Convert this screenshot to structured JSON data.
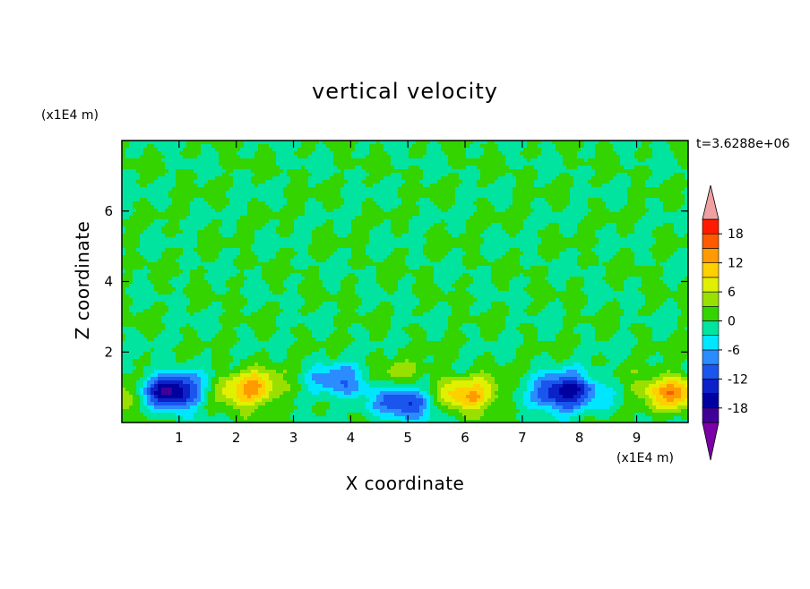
{
  "chart_data": {
    "type": "heatmap",
    "title": "vertical velocity",
    "xlabel": "X coordinate",
    "ylabel": "Z coordinate",
    "x_unit": "(x1E4 m)",
    "y_unit": "(x1E4 m)",
    "time_label": "t=3.6288e+06",
    "xlim": [
      0,
      9.9
    ],
    "ylim": [
      0,
      8
    ],
    "x_ticks": [
      1,
      2,
      3,
      4,
      5,
      6,
      7,
      8,
      9
    ],
    "y_ticks": [
      2,
      4,
      6
    ],
    "colorbar": {
      "levels": [
        -21,
        -18,
        -15,
        -12,
        -9,
        -6,
        -3,
        0,
        3,
        6,
        9,
        12,
        15,
        18,
        21
      ],
      "tick_labels": [
        "18",
        "12",
        "6",
        "0",
        "-6",
        "-12",
        "-18"
      ],
      "colors": [
        "#7b00a8",
        "#400098",
        "#0000a0",
        "#0a22c8",
        "#1a55ee",
        "#2a8cff",
        "#00e6ff",
        "#00e4a0",
        "#33d400",
        "#99e000",
        "#e0f000",
        "#ffd000",
        "#ff9a00",
        "#ff5a00",
        "#ff1a00",
        "#f0a0a0"
      ],
      "extend": "both"
    },
    "features": [
      {
        "type": "updraft",
        "x": 0.0,
        "z": 0.8,
        "peak": 7
      },
      {
        "type": "downdraft",
        "x": 0.85,
        "z": 0.9,
        "peak": -19
      },
      {
        "type": "updraft",
        "x": 2.25,
        "z": 0.95,
        "peak": 13
      },
      {
        "type": "downdraft",
        "x": 3.8,
        "z": 1.15,
        "peak": -9
      },
      {
        "type": "updraft",
        "x": 4.85,
        "z": 1.35,
        "peak": 4
      },
      {
        "type": "downdraft",
        "x": 4.95,
        "z": 0.55,
        "peak": -12
      },
      {
        "type": "updraft",
        "x": 6.05,
        "z": 0.8,
        "peak": 12
      },
      {
        "type": "downdraft",
        "x": 7.75,
        "z": 0.85,
        "peak": -18
      },
      {
        "type": "updraft",
        "x": 9.6,
        "z": 0.85,
        "peak": 13
      }
    ]
  }
}
